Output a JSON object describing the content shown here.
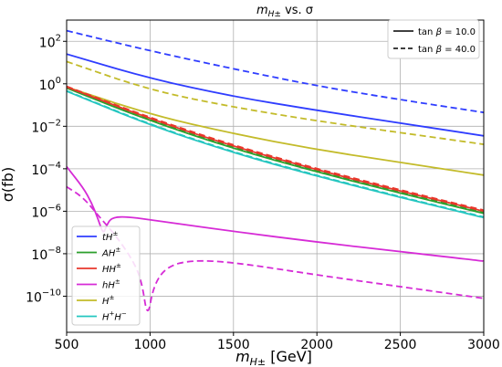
{
  "chart_data": {
    "type": "line",
    "title_base": "m",
    "title_sub": "H±",
    "title_rest": " vs. σ",
    "xlabel_base": "m",
    "xlabel_sub": "H±",
    "xlabel_unit": " [GeV]",
    "ylabel": "σ(fb)",
    "xlim": [
      500,
      3000
    ],
    "ylim_log10": [
      -11.7,
      3.0
    ],
    "yscale": "log",
    "grid": true,
    "x_ticks": [
      500,
      1000,
      1500,
      2000,
      2500,
      3000
    ],
    "x_tick_labels": [
      "500",
      "1000",
      "1500",
      "2000",
      "2500",
      "3000"
    ],
    "y_tick_exponents": [
      2,
      0,
      -2,
      -4,
      -6,
      -8,
      -10
    ],
    "y_tick_labels": [
      "10",
      "10",
      "10",
      "10",
      "10",
      "10",
      "10"
    ],
    "y_tick_superscripts": [
      "2",
      "0",
      "−2",
      "−4",
      "−6",
      "−8",
      "−10"
    ],
    "styles_legend": {
      "position": "top-right",
      "entries": [
        {
          "label_prefix": "tan ",
          "label_beta": "β",
          "label_suffix": " = 10.0",
          "dash": "solid"
        },
        {
          "label_prefix": "tan ",
          "label_beta": "β",
          "label_suffix": " = 40.0",
          "dash": "dashed"
        }
      ]
    },
    "process_legend": {
      "position": "bottom-left",
      "entries": [
        {
          "label_base": "tH",
          "label_sup": "±",
          "color": "#2f3dff"
        },
        {
          "label_base": "AH",
          "label_sup": "±",
          "color": "#2ca02c"
        },
        {
          "label_base": "HH",
          "label_sup": "±",
          "color": "#e8372b"
        },
        {
          "label_base": "hH",
          "label_sup": "±",
          "color": "#d62bd6"
        },
        {
          "label_base": "H",
          "label_sup": "±",
          "color": "#c3bb2a"
        },
        {
          "label_base": "H",
          "label_sup": "+",
          "label_tail_base": "H",
          "label_tail_sup": "−",
          "color": "#25c6c0"
        }
      ]
    },
    "series": [
      {
        "process": "tH±",
        "tanb": "10.0",
        "color": "#2f3dff",
        "dash": "solid",
        "x": [
          500,
          1000,
          1500,
          2000,
          2500,
          3000
        ],
        "log10y": [
          1.4,
          0.25,
          -0.6,
          -1.25,
          -1.85,
          -2.45
        ]
      },
      {
        "process": "tH±",
        "tanb": "40.0",
        "color": "#2f3dff",
        "dash": "dashed",
        "x": [
          500,
          1000,
          1500,
          2000,
          2500,
          3000
        ],
        "log10y": [
          2.5,
          1.55,
          0.7,
          -0.1,
          -0.75,
          -1.35
        ]
      },
      {
        "process": "H±",
        "tanb": "10.0",
        "color": "#c3bb2a",
        "dash": "solid",
        "x": [
          500,
          1000,
          1500,
          2000,
          2500,
          3000
        ],
        "log10y": [
          -0.15,
          -1.45,
          -2.35,
          -3.1,
          -3.7,
          -4.3
        ]
      },
      {
        "process": "H±",
        "tanb": "40.0",
        "color": "#c3bb2a",
        "dash": "dashed",
        "x": [
          500,
          1000,
          1500,
          2000,
          2500,
          3000
        ],
        "log10y": [
          1.05,
          -0.3,
          -1.1,
          -1.75,
          -2.3,
          -2.85
        ]
      },
      {
        "process": "AH±",
        "tanb": "10.0",
        "color": "#2ca02c",
        "dash": "solid",
        "x": [
          500,
          1000,
          1500,
          2000,
          2500,
          3000
        ],
        "log10y": [
          -0.2,
          -1.75,
          -3.05,
          -4.15,
          -5.15,
          -6.1
        ]
      },
      {
        "process": "AH±",
        "tanb": "40.0",
        "color": "#2ca02c",
        "dash": "dashed",
        "x": [
          500,
          1000,
          1500,
          2000,
          2500,
          3000
        ],
        "log10y": [
          -0.18,
          -1.72,
          -3.0,
          -4.1,
          -5.1,
          -6.05
        ]
      },
      {
        "process": "HH±",
        "tanb": "10.0",
        "color": "#e8372b",
        "dash": "solid",
        "x": [
          500,
          1000,
          1500,
          2000,
          2500,
          3000
        ],
        "log10y": [
          -0.15,
          -1.65,
          -2.95,
          -4.05,
          -5.05,
          -6.0
        ]
      },
      {
        "process": "HH±",
        "tanb": "40.0",
        "color": "#e8372b",
        "dash": "dashed",
        "x": [
          500,
          1000,
          1500,
          2000,
          2500,
          3000
        ],
        "log10y": [
          -0.12,
          -1.6,
          -2.9,
          -4.0,
          -5.0,
          -5.95
        ]
      },
      {
        "process": "H+H−",
        "tanb": "10.0",
        "color": "#25c6c0",
        "dash": "solid",
        "x": [
          500,
          1000,
          1500,
          2000,
          2500,
          3000
        ],
        "log10y": [
          -0.35,
          -1.95,
          -3.25,
          -4.35,
          -5.35,
          -6.3
        ]
      },
      {
        "process": "H+H−",
        "tanb": "40.0",
        "color": "#25c6c0",
        "dash": "dashed",
        "x": [
          500,
          1000,
          1500,
          2000,
          2500,
          3000
        ],
        "log10y": [
          -0.33,
          -1.92,
          -3.22,
          -4.32,
          -5.32,
          -6.27
        ]
      },
      {
        "process": "hH±",
        "tanb": "10.0",
        "color": "#d62bd6",
        "dash": "solid",
        "x": [
          500,
          600,
          650,
          690,
          720,
          740,
          770,
          850,
          1000,
          1500,
          2000,
          2500,
          3000
        ],
        "log10y": [
          -3.9,
          -4.9,
          -5.6,
          -6.4,
          -7.1,
          -6.65,
          -6.3,
          -6.25,
          -6.4,
          -6.95,
          -7.45,
          -7.9,
          -8.35
        ]
      },
      {
        "process": "hH±",
        "tanb": "40.0",
        "color": "#d62bd6",
        "dash": "dashed",
        "x": [
          500,
          600,
          700,
          800,
          900,
          950,
          985,
          1020,
          1100,
          1250,
          1500,
          2000,
          2500,
          3000
        ],
        "log10y": [
          -4.85,
          -5.35,
          -6.3,
          -7.2,
          -8.35,
          -9.3,
          -11.1,
          -9.5,
          -8.6,
          -8.3,
          -8.4,
          -9.0,
          -9.55,
          -10.1
        ]
      }
    ]
  }
}
